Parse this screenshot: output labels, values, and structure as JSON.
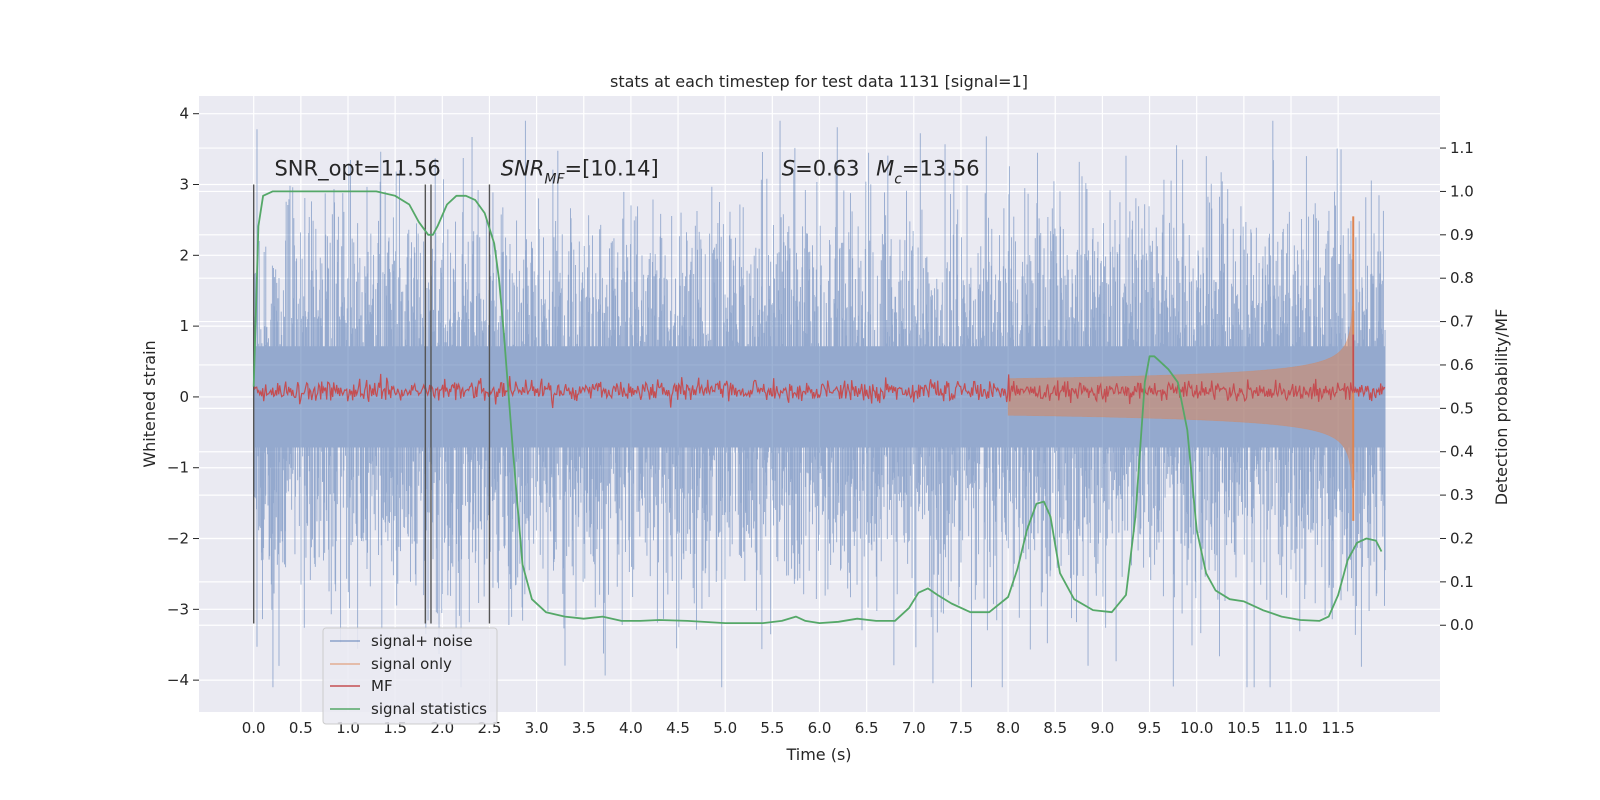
{
  "chart_data": {
    "type": "line",
    "title": "stats at each timestep for test data 1131 [signal=1]",
    "xlabel": "Time (s)",
    "ylabel": "Whitened strain",
    "y2label": "Detection probability/MF",
    "xlim": [
      -0.58,
      12.58
    ],
    "ylim": [
      -4.45,
      4.25
    ],
    "y2lim": [
      -0.2,
      1.22
    ],
    "x_ticks": [
      0.0,
      0.5,
      1.0,
      1.5,
      2.0,
      2.5,
      3.0,
      3.5,
      4.0,
      4.5,
      5.0,
      5.5,
      6.0,
      6.5,
      7.0,
      7.5,
      8.0,
      8.5,
      9.0,
      9.5,
      10.0,
      10.5,
      11.0,
      11.5
    ],
    "x_tick_labels": [
      "0.0",
      "0.5",
      "1.0",
      "1.5",
      "2.0",
      "2.5",
      "3.0",
      "3.5",
      "4.0",
      "4.5",
      "5.0",
      "5.5",
      "6.0",
      "6.5",
      "7.0",
      "7.5",
      "8.0",
      "8.5",
      "9.0",
      "9.5",
      "10.0",
      "10.5",
      "11.0",
      "11.5"
    ],
    "y_ticks": [
      -4,
      -3,
      -2,
      -1,
      0,
      1,
      2,
      3,
      4
    ],
    "y_tick_labels": [
      "−4",
      "−3",
      "−2",
      "−1",
      "0",
      "1",
      "2",
      "3",
      "4"
    ],
    "y2_ticks": [
      0.0,
      0.1,
      0.2,
      0.3,
      0.4,
      0.5,
      0.6,
      0.7,
      0.8,
      0.9,
      1.0,
      1.1
    ],
    "y2_tick_labels": [
      "0.0",
      "0.1",
      "0.2",
      "0.3",
      "0.4",
      "0.5",
      "0.6",
      "0.7",
      "0.8",
      "0.9",
      "1.0",
      "1.1"
    ],
    "grid": true,
    "legend_position": "lower-left",
    "series": [
      {
        "name": "signal+ noise",
        "color": "#4c72b0",
        "axis": "left",
        "x_range": [
          0.0,
          12.0
        ],
        "envelope_sigma": 1.0,
        "peak_range": [
          -4.1,
          3.9
        ]
      },
      {
        "name": "signal only",
        "color": "#dd8452",
        "axis": "left",
        "x_range": [
          0.0,
          11.66
        ],
        "merger_time": 11.66,
        "merger_peak": 2.55,
        "merger_trough": -1.75
      },
      {
        "name": "MF",
        "color": "#c44e52",
        "axis": "right",
        "x_range": [
          0.0,
          12.0
        ],
        "mean": 0.54,
        "spike": {
          "x": 11.66,
          "y": 0.67
        }
      },
      {
        "name": "signal statistics",
        "color": "#55a868",
        "axis": "right",
        "x": [
          0.0,
          0.05,
          0.1,
          0.2,
          0.3,
          0.5,
          0.8,
          1.0,
          1.3,
          1.5,
          1.65,
          1.75,
          1.85,
          1.9,
          1.95,
          2.05,
          2.15,
          2.25,
          2.35,
          2.45,
          2.55,
          2.6,
          2.65,
          2.75,
          2.85,
          2.95,
          3.1,
          3.3,
          3.5,
          3.7,
          3.9,
          4.1,
          4.3,
          4.6,
          5.0,
          5.4,
          5.6,
          5.75,
          5.85,
          6.0,
          6.2,
          6.4,
          6.6,
          6.8,
          6.95,
          7.05,
          7.15,
          7.25,
          7.4,
          7.6,
          7.8,
          8.0,
          8.1,
          8.2,
          8.3,
          8.38,
          8.45,
          8.55,
          8.7,
          8.9,
          9.1,
          9.25,
          9.35,
          9.45,
          9.5,
          9.55,
          9.6,
          9.7,
          9.8,
          9.9,
          10.0,
          10.1,
          10.2,
          10.35,
          10.5,
          10.7,
          10.9,
          11.1,
          11.3,
          11.4,
          11.5,
          11.6,
          11.7,
          11.8,
          11.9,
          11.96
        ],
        "y": [
          0.55,
          0.92,
          0.99,
          1.0,
          1.0,
          1.0,
          1.0,
          1.0,
          1.0,
          0.99,
          0.97,
          0.93,
          0.9,
          0.9,
          0.92,
          0.97,
          0.99,
          0.99,
          0.98,
          0.95,
          0.88,
          0.8,
          0.68,
          0.4,
          0.14,
          0.06,
          0.03,
          0.02,
          0.015,
          0.02,
          0.01,
          0.01,
          0.012,
          0.01,
          0.005,
          0.005,
          0.01,
          0.02,
          0.01,
          0.005,
          0.008,
          0.015,
          0.01,
          0.01,
          0.04,
          0.075,
          0.085,
          0.07,
          0.05,
          0.03,
          0.03,
          0.065,
          0.13,
          0.22,
          0.28,
          0.285,
          0.25,
          0.12,
          0.06,
          0.035,
          0.03,
          0.07,
          0.25,
          0.56,
          0.62,
          0.62,
          0.61,
          0.59,
          0.56,
          0.45,
          0.22,
          0.12,
          0.08,
          0.06,
          0.055,
          0.035,
          0.02,
          0.012,
          0.01,
          0.02,
          0.07,
          0.15,
          0.19,
          0.2,
          0.195,
          0.17
        ]
      }
    ],
    "vertical_lines": [
      {
        "x": 0.0,
        "y_top": 3.0,
        "y_bottom": -3.2
      },
      {
        "x": 1.82,
        "y_top": 3.0,
        "y_bottom": -3.2
      },
      {
        "x": 1.88,
        "y_top": 3.0,
        "y_bottom": -3.2
      },
      {
        "x": 2.5,
        "y_top": 3.0,
        "y_bottom": -3.2
      }
    ],
    "annotations": [
      {
        "name": "snr-opt",
        "text": "SNR_opt=11.56",
        "x": 0.22,
        "y": 3.13
      },
      {
        "name": "snr-mf",
        "text": "SNR_MF=[10.14]",
        "x": 2.62,
        "y": 3.13
      },
      {
        "name": "s-stat",
        "text": "S=0.63",
        "x": 5.6,
        "y": 3.13
      },
      {
        "name": "mc",
        "text": "M_c=13.56",
        "x": 6.6,
        "y": 3.13
      }
    ]
  }
}
